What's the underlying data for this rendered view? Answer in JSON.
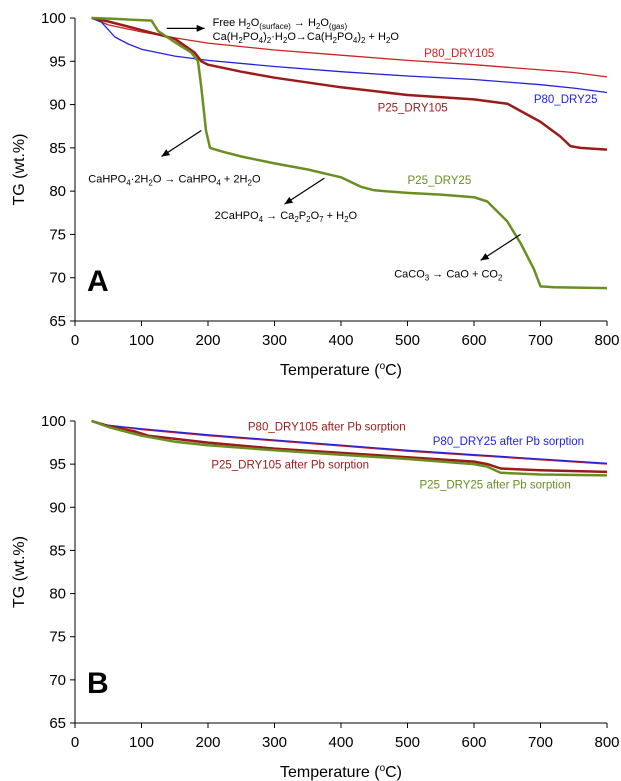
{
  "chart_data": [
    {
      "type": "line",
      "panel_label": "A",
      "xlabel": "Temperature (°C)",
      "xlabel_parts": {
        "main": "Temperature (",
        "sup": "o",
        "end": "C)"
      },
      "ylabel": "TG (wt.%)",
      "xlim": [
        0,
        800
      ],
      "ylim": [
        65,
        100
      ],
      "xticks": [
        0,
        100,
        200,
        300,
        400,
        500,
        600,
        700,
        800
      ],
      "yticks": [
        65,
        70,
        75,
        80,
        85,
        90,
        95,
        100
      ],
      "grid": false,
      "series": [
        {
          "name": "P80_DRY105",
          "color": "#cc2222",
          "points": [
            [
              25,
              100
            ],
            [
              50,
              99.2
            ],
            [
              100,
              98.4
            ],
            [
              150,
              97.7
            ],
            [
              200,
              97.1
            ],
            [
              300,
              96.3
            ],
            [
              400,
              95.7
            ],
            [
              500,
              95.1
            ],
            [
              600,
              94.6
            ],
            [
              700,
              94.0
            ],
            [
              750,
              93.7
            ],
            [
              800,
              93.2
            ]
          ]
        },
        {
          "name": "P80_DRY25",
          "color": "#2222dd",
          "points": [
            [
              25,
              100
            ],
            [
              40,
              99.5
            ],
            [
              60,
              97.8
            ],
            [
              80,
              97.0
            ],
            [
              100,
              96.4
            ],
            [
              150,
              95.6
            ],
            [
              200,
              95.1
            ],
            [
              300,
              94.4
            ],
            [
              400,
              93.8
            ],
            [
              500,
              93.3
            ],
            [
              600,
              92.9
            ],
            [
              700,
              92.3
            ],
            [
              750,
              91.9
            ],
            [
              800,
              91.4
            ]
          ]
        },
        {
          "name": "P25_DRY105",
          "color": "#9b1a1a",
          "points": [
            [
              25,
              100
            ],
            [
              50,
              99.6
            ],
            [
              100,
              98.6
            ],
            [
              150,
              97.6
            ],
            [
              180,
              96.0
            ],
            [
              190,
              95.0
            ],
            [
              200,
              94.6
            ],
            [
              250,
              93.8
            ],
            [
              300,
              93.1
            ],
            [
              400,
              92.0
            ],
            [
              500,
              91.1
            ],
            [
              600,
              90.6
            ],
            [
              650,
              90.1
            ],
            [
              700,
              88.0
            ],
            [
              730,
              86.3
            ],
            [
              745,
              85.2
            ],
            [
              760,
              85.0
            ],
            [
              800,
              84.8
            ]
          ]
        },
        {
          "name": "P25_DRY25",
          "color": "#6b8e23",
          "points": [
            [
              25,
              100
            ],
            [
              60,
              99.9
            ],
            [
              115,
              99.7
            ],
            [
              125,
              98.5
            ],
            [
              150,
              97.2
            ],
            [
              175,
              96.0
            ],
            [
              185,
              95.0
            ],
            [
              190,
              92.0
            ],
            [
              197,
              87.0
            ],
            [
              203,
              85.0
            ],
            [
              220,
              84.6
            ],
            [
              250,
              84.0
            ],
            [
              300,
              83.2
            ],
            [
              350,
              82.5
            ],
            [
              400,
              81.6
            ],
            [
              430,
              80.5
            ],
            [
              450,
              80.1
            ],
            [
              500,
              79.8
            ],
            [
              550,
              79.6
            ],
            [
              600,
              79.3
            ],
            [
              620,
              78.8
            ],
            [
              650,
              76.5
            ],
            [
              670,
              74.0
            ],
            [
              690,
              71.0
            ],
            [
              700,
              69.0
            ],
            [
              720,
              68.9
            ],
            [
              800,
              68.8
            ]
          ]
        }
      ],
      "series_labels": [
        {
          "text": "P80_DRY105",
          "x": 525,
          "y": 95.5,
          "color": "#cc2222"
        },
        {
          "text": "P80_DRY25",
          "x": 690,
          "y": 90.2,
          "color": "#2222dd"
        },
        {
          "text": "P25_DRY105",
          "x": 455,
          "y": 89.2,
          "color": "#9b1a1a"
        },
        {
          "text": "P25_DRY25",
          "x": 500,
          "y": 80.8,
          "color": "#6b8e23"
        }
      ],
      "annotations": [
        {
          "id": "free-water",
          "line1": [
            "Free H",
            {
              "sub": "2"
            },
            "O",
            {
              "sub": "(surface)"
            },
            " → H",
            {
              "sub": "2"
            },
            "O",
            {
              "sub": "(gas)"
            }
          ],
          "line2": [
            "Ca(H",
            {
              "sub": "2"
            },
            "PO",
            {
              "sub": "4"
            },
            ")",
            {
              "sub": "2"
            },
            "·H",
            {
              "sub": "2"
            },
            "O→Ca(H",
            {
              "sub": "2"
            },
            "PO",
            {
              "sub": "4"
            },
            ")",
            {
              "sub": "2"
            },
            " + H",
            {
              "sub": "2"
            },
            "O"
          ],
          "text_x": 207,
          "text_y": 99.1,
          "arrow": {
            "from": [
              138,
              98.8
            ],
            "to": [
              195,
              98.8
            ]
          }
        },
        {
          "id": "dehydration",
          "line1": [
            "CaHPO",
            {
              "sub": "4"
            },
            "·2H",
            {
              "sub": "2"
            },
            "O → CaHPO",
            {
              "sub": "4"
            },
            " + 2H",
            {
              "sub": "2"
            },
            "O"
          ],
          "text_x": 20,
          "text_y": 81.0,
          "arrow": {
            "from": [
              190,
              87.0
            ],
            "to": [
              130,
              84.0
            ]
          }
        },
        {
          "id": "pyrophosphate",
          "line1": [
            "2CaHPO",
            {
              "sub": "4"
            },
            " → Ca",
            {
              "sub": "2"
            },
            "P",
            {
              "sub": "2"
            },
            "O",
            {
              "sub": "7"
            },
            " + H",
            {
              "sub": "2"
            },
            "O"
          ],
          "text_x": 210,
          "text_y": 76.8,
          "arrow": {
            "from": [
              375,
              81.5
            ],
            "to": [
              315,
              78.5
            ]
          }
        },
        {
          "id": "calcite",
          "line1": [
            "CaCO",
            {
              "sub": "3"
            },
            " → CaO + CO",
            {
              "sub": "2"
            }
          ],
          "text_x": 480,
          "text_y": 70.0,
          "arrow": {
            "from": [
              670,
              75.0
            ],
            "to": [
              610,
              72.0
            ]
          }
        }
      ]
    },
    {
      "type": "line",
      "panel_label": "B",
      "xlabel": "Temperature (°C)",
      "xlabel_parts": {
        "main": "Temperature (",
        "sup": "o",
        "end": "C)"
      },
      "ylabel": "TG (wt.%)",
      "xlim": [
        0,
        800
      ],
      "ylim": [
        65,
        100
      ],
      "xticks": [
        0,
        100,
        200,
        300,
        400,
        500,
        600,
        700,
        800
      ],
      "yticks": [
        65,
        70,
        75,
        80,
        85,
        90,
        95,
        100
      ],
      "grid": false,
      "series": [
        {
          "name": "P80_DRY105 after Pb sorption",
          "color": "#cc2222",
          "points": [
            [
              25,
              100
            ],
            [
              50,
              99.5
            ],
            [
              100,
              99.0
            ],
            [
              200,
              98.3
            ],
            [
              300,
              97.7
            ],
            [
              400,
              97.1
            ],
            [
              500,
              96.5
            ],
            [
              600,
              96.0
            ],
            [
              700,
              95.5
            ],
            [
              800,
              95.0
            ]
          ]
        },
        {
          "name": "P80_DRY25 after Pb sorption",
          "color": "#2222dd",
          "points": [
            [
              25,
              100
            ],
            [
              50,
              99.5
            ],
            [
              100,
              99.1
            ],
            [
              200,
              98.4
            ],
            [
              300,
              97.8
            ],
            [
              400,
              97.2
            ],
            [
              500,
              96.6
            ],
            [
              600,
              96.1
            ],
            [
              700,
              95.6
            ],
            [
              800,
              95.1
            ]
          ]
        },
        {
          "name": "P25_DRY105 after Pb sorption",
          "color": "#9b1a1a",
          "points": [
            [
              25,
              100
            ],
            [
              50,
              99.4
            ],
            [
              90,
              98.8
            ],
            [
              110,
              98.3
            ],
            [
              200,
              97.5
            ],
            [
              300,
              96.8
            ],
            [
              400,
              96.3
            ],
            [
              500,
              95.8
            ],
            [
              600,
              95.3
            ],
            [
              620,
              95.0
            ],
            [
              640,
              94.5
            ],
            [
              700,
              94.3
            ],
            [
              800,
              94.1
            ]
          ]
        },
        {
          "name": "P25_DRY25 after Pb sorption",
          "color": "#6b8e23",
          "points": [
            [
              25,
              100
            ],
            [
              50,
              99.3
            ],
            [
              100,
              98.3
            ],
            [
              150,
              97.6
            ],
            [
              200,
              97.2
            ],
            [
              300,
              96.6
            ],
            [
              400,
              96.1
            ],
            [
              500,
              95.6
            ],
            [
              600,
              95.0
            ],
            [
              620,
              94.7
            ],
            [
              640,
              94.0
            ],
            [
              700,
              93.8
            ],
            [
              800,
              93.7
            ]
          ]
        }
      ],
      "series_labels": [
        {
          "text": "P80_DRY105 after Pb sorption",
          "x": 260,
          "y": 98.9,
          "color": "#9b1a1a"
        },
        {
          "text": "P80_DRY25 after Pb sorption",
          "x": 538,
          "y": 97.2,
          "color": "#2222dd"
        },
        {
          "text": "P25_DRY105 after Pb sorption",
          "x": 205,
          "y": 94.5,
          "color": "#9b1a1a"
        },
        {
          "text": "P25_DRY25 after Pb sorption",
          "x": 518,
          "y": 92.2,
          "color": "#6b8e23"
        }
      ],
      "annotations": []
    }
  ]
}
